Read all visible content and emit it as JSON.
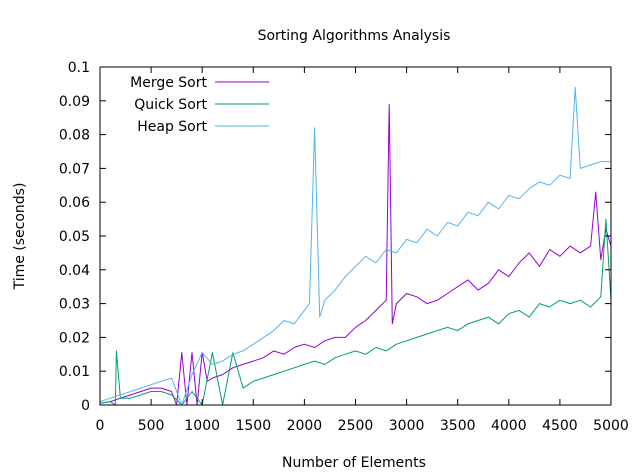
{
  "chart_data": {
    "type": "line",
    "title": "Sorting Algorithms Analysis",
    "xlabel": "Number of Elements",
    "ylabel": "Time (seconds)",
    "xlim": [
      0,
      5000
    ],
    "ylim": [
      0,
      0.1
    ],
    "x_ticks": [
      0,
      500,
      1000,
      1500,
      2000,
      2500,
      3000,
      3500,
      4000,
      4500,
      5000
    ],
    "y_ticks": [
      0,
      0.01,
      0.02,
      0.03,
      0.04,
      0.05,
      0.06,
      0.07,
      0.08,
      0.09,
      0.1
    ],
    "x_tick_labels": [
      "0",
      "500",
      "1000",
      "1500",
      "2000",
      "2500",
      "3000",
      "3500",
      "4000",
      "4500",
      "5000"
    ],
    "y_tick_labels": [
      "0",
      "0.01",
      "0.02",
      "0.03",
      "0.04",
      "0.05",
      "0.06",
      "0.07",
      "0.08",
      "0.09",
      "0.1"
    ],
    "grid": false,
    "legend_position": "top-left",
    "series": [
      {
        "name": "Merge Sort",
        "color": "#9400d3",
        "x": [
          0,
          100,
          200,
          300,
          400,
          500,
          600,
          700,
          750,
          800,
          850,
          900,
          950,
          1000,
          1050,
          1100,
          1200,
          1300,
          1400,
          1500,
          1600,
          1700,
          1800,
          1900,
          2000,
          2100,
          2200,
          2300,
          2400,
          2500,
          2600,
          2700,
          2800,
          2830,
          2860,
          2900,
          3000,
          3100,
          3200,
          3300,
          3400,
          3500,
          3600,
          3700,
          3800,
          3900,
          4000,
          4100,
          4200,
          4300,
          4400,
          4500,
          4600,
          4700,
          4800,
          4850,
          4900,
          4950,
          5000
        ],
        "y": [
          0.0005,
          0.001,
          0.002,
          0.003,
          0.004,
          0.005,
          0.005,
          0.004,
          0.0,
          0.0155,
          0.0,
          0.0155,
          0.0,
          0.0155,
          0.007,
          0.008,
          0.009,
          0.011,
          0.012,
          0.013,
          0.014,
          0.016,
          0.015,
          0.017,
          0.018,
          0.017,
          0.019,
          0.02,
          0.02,
          0.023,
          0.025,
          0.028,
          0.031,
          0.089,
          0.024,
          0.03,
          0.033,
          0.032,
          0.03,
          0.031,
          0.033,
          0.035,
          0.037,
          0.034,
          0.036,
          0.04,
          0.038,
          0.042,
          0.045,
          0.041,
          0.046,
          0.044,
          0.047,
          0.045,
          0.047,
          0.063,
          0.043,
          0.052,
          0.047
        ]
      },
      {
        "name": "Quick Sort",
        "color": "#009e73",
        "x": [
          0,
          100,
          150,
          160,
          200,
          300,
          400,
          500,
          600,
          700,
          800,
          900,
          1000,
          1100,
          1200,
          1300,
          1400,
          1500,
          1600,
          1700,
          1800,
          1900,
          2000,
          2100,
          2200,
          2300,
          2400,
          2500,
          2600,
          2700,
          2800,
          2900,
          3000,
          3100,
          3200,
          3300,
          3400,
          3500,
          3600,
          3700,
          3800,
          3900,
          4000,
          4100,
          4200,
          4300,
          4400,
          4500,
          4600,
          4700,
          4800,
          4900,
          4950,
          5000
        ],
        "y": [
          0.0005,
          0.001,
          0.0,
          0.016,
          0.002,
          0.002,
          0.003,
          0.004,
          0.004,
          0.003,
          0.0,
          0.004,
          0.0,
          0.0155,
          0.0,
          0.0155,
          0.005,
          0.007,
          0.008,
          0.009,
          0.01,
          0.011,
          0.012,
          0.013,
          0.012,
          0.014,
          0.015,
          0.016,
          0.015,
          0.017,
          0.016,
          0.018,
          0.019,
          0.02,
          0.021,
          0.022,
          0.023,
          0.022,
          0.024,
          0.025,
          0.026,
          0.024,
          0.027,
          0.028,
          0.026,
          0.03,
          0.029,
          0.031,
          0.03,
          0.031,
          0.029,
          0.032,
          0.055,
          0.031
        ]
      },
      {
        "name": "Heap Sort",
        "color": "#56b4e9",
        "x": [
          0,
          100,
          200,
          300,
          400,
          500,
          600,
          700,
          800,
          900,
          1000,
          1100,
          1200,
          1300,
          1400,
          1500,
          1600,
          1700,
          1800,
          1900,
          2000,
          2050,
          2100,
          2150,
          2200,
          2300,
          2400,
          2500,
          2600,
          2700,
          2800,
          2900,
          3000,
          3100,
          3200,
          3300,
          3400,
          3500,
          3600,
          3700,
          3800,
          3900,
          4000,
          4100,
          4200,
          4300,
          4400,
          4500,
          4600,
          4650,
          4700,
          4800,
          4900,
          5000
        ],
        "y": [
          0.001,
          0.002,
          0.003,
          0.004,
          0.005,
          0.006,
          0.007,
          0.008,
          0.0,
          0.009,
          0.0155,
          0.012,
          0.013,
          0.015,
          0.016,
          0.018,
          0.02,
          0.022,
          0.025,
          0.024,
          0.028,
          0.03,
          0.082,
          0.026,
          0.031,
          0.034,
          0.038,
          0.041,
          0.044,
          0.042,
          0.046,
          0.045,
          0.049,
          0.048,
          0.052,
          0.05,
          0.054,
          0.053,
          0.057,
          0.056,
          0.06,
          0.058,
          0.062,
          0.061,
          0.064,
          0.066,
          0.065,
          0.068,
          0.067,
          0.094,
          0.07,
          0.071,
          0.072,
          0.072
        ]
      }
    ]
  }
}
